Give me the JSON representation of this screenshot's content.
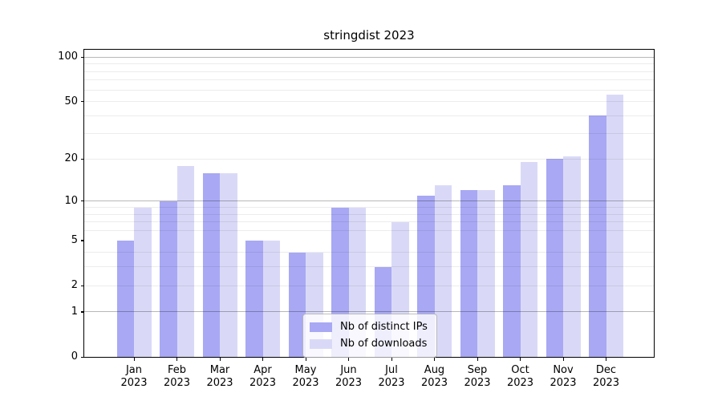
{
  "title": "stringdist 2023",
  "colors": {
    "distinct_ips": "#a8a8f4",
    "downloads": "#d9d9f7",
    "axis": "#000000",
    "grid_major": "#b4b4b4",
    "grid_minor": "#ececec",
    "legend_bg": "rgba(255,255,255,0.8)"
  },
  "y_axis": {
    "tick_labels": [
      "0",
      "1",
      "2",
      "5",
      "10",
      "20",
      "50",
      "100"
    ]
  },
  "chart_data": {
    "type": "bar",
    "title": "stringdist 2023",
    "categories": [
      "Jan 2023",
      "Feb 2023",
      "Mar 2023",
      "Apr 2023",
      "May 2023",
      "Jun 2023",
      "Jul 2023",
      "Aug 2023",
      "Sep 2023",
      "Oct 2023",
      "Nov 2023",
      "Dec 2023"
    ],
    "series": [
      {
        "name": "Nb of distinct IPs",
        "color": "#a8a8f4",
        "values": [
          5,
          10,
          16,
          5,
          4,
          9,
          3,
          11,
          12,
          13,
          20,
          40
        ]
      },
      {
        "name": "Nb of downloads",
        "color": "#d9d9f7",
        "values": [
          9,
          18,
          16,
          5,
          4,
          9,
          7,
          13,
          12,
          19,
          21,
          56
        ]
      }
    ],
    "xlabel": "",
    "ylabel": "",
    "yscale": "log1p",
    "ylim": [
      0,
      110
    ],
    "yticks": [
      0,
      1,
      2,
      5,
      10,
      20,
      50,
      100
    ],
    "minor_gridlines": [
      2,
      3,
      4,
      6,
      7,
      8,
      9,
      20,
      30,
      40,
      50,
      60,
      70,
      80,
      90
    ],
    "major_gridlines": [
      1,
      10,
      100
    ],
    "grid": true,
    "legend_position": "lower center"
  }
}
